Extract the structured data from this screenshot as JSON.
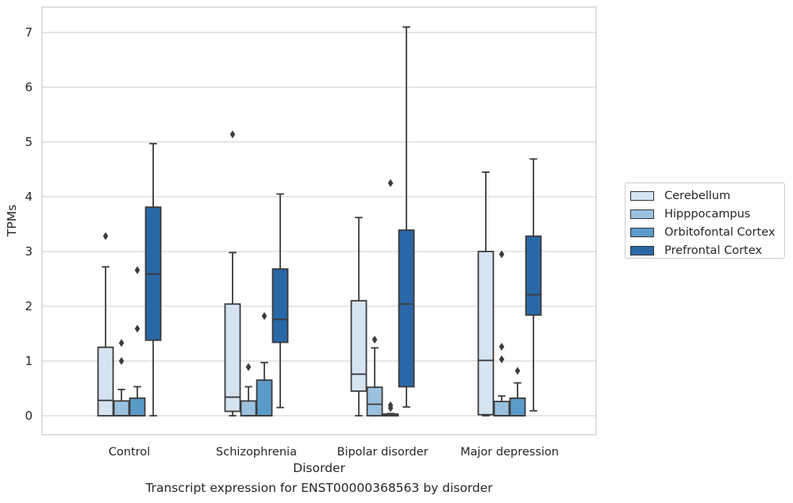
{
  "caption": "Transcript expression for ENST00000368563 by disorder",
  "chart_data": {
    "type": "box",
    "xlabel": "Disorder",
    "ylabel": "TPMs",
    "ylim": [
      -0.35,
      7.5
    ],
    "yticks": [
      0,
      1,
      2,
      3,
      4,
      5,
      6,
      7
    ],
    "grid": "horizontal",
    "legend_position": "right",
    "categories": [
      "Control",
      "Schizophrenia",
      "Bipolar disorder",
      "Major depression"
    ],
    "series": [
      {
        "name": "Cerebellum",
        "color": "#d6e4f2",
        "boxes": [
          {
            "whislo": 0.0,
            "q1": 0.0,
            "med": 0.28,
            "q3": 1.25,
            "whishi": 2.72,
            "fliers": [
              3.28
            ]
          },
          {
            "whislo": 0.0,
            "q1": 0.08,
            "med": 0.34,
            "q3": 2.04,
            "whishi": 2.98,
            "fliers": [
              5.14
            ]
          },
          {
            "whislo": 0.0,
            "q1": 0.45,
            "med": 0.76,
            "q3": 2.1,
            "whishi": 3.62,
            "fliers": []
          },
          {
            "whislo": 0.0,
            "q1": 0.02,
            "med": 1.01,
            "q3": 3.0,
            "whishi": 4.45,
            "fliers": []
          }
        ]
      },
      {
        "name": "Hipppocampus",
        "color": "#9ac1dd",
        "boxes": [
          {
            "whislo": 0.0,
            "q1": 0.0,
            "med": 0.0,
            "q3": 0.27,
            "whishi": 0.48,
            "fliers": [
              1.0,
              1.33
            ]
          },
          {
            "whislo": 0.0,
            "q1": 0.0,
            "med": 0.0,
            "q3": 0.27,
            "whishi": 0.53,
            "fliers": [
              0.89
            ]
          },
          {
            "whislo": 0.0,
            "q1": 0.0,
            "med": 0.21,
            "q3": 0.52,
            "whishi": 1.24,
            "fliers": [
              1.39
            ]
          },
          {
            "whislo": 0.0,
            "q1": 0.0,
            "med": 0.0,
            "q3": 0.26,
            "whishi": 0.36,
            "fliers": [
              1.03,
              1.26,
              2.95
            ]
          }
        ]
      },
      {
        "name": "Orbitofontal Cortex",
        "color": "#5b9bc9",
        "boxes": [
          {
            "whislo": 0.0,
            "q1": 0.0,
            "med": 0.0,
            "q3": 0.32,
            "whishi": 0.53,
            "fliers": [
              1.59,
              2.66
            ]
          },
          {
            "whislo": 0.0,
            "q1": 0.0,
            "med": 0.0,
            "q3": 0.65,
            "whishi": 0.97,
            "fliers": [
              1.82
            ]
          },
          {
            "whislo": 0.0,
            "q1": 0.0,
            "med": 0.0,
            "q3": 0.03,
            "whishi": 0.04,
            "fliers": [
              0.14,
              0.19,
              4.25
            ]
          },
          {
            "whislo": 0.0,
            "q1": 0.0,
            "med": 0.0,
            "q3": 0.32,
            "whishi": 0.6,
            "fliers": [
              0.82
            ]
          }
        ]
      },
      {
        "name": "Prefrontal Cortex",
        "color": "#2a67a6",
        "boxes": [
          {
            "whislo": 0.0,
            "q1": 1.38,
            "med": 2.59,
            "q3": 3.81,
            "whishi": 4.97,
            "fliers": []
          },
          {
            "whislo": 0.15,
            "q1": 1.34,
            "med": 1.76,
            "q3": 2.68,
            "whishi": 4.05,
            "fliers": []
          },
          {
            "whislo": 0.16,
            "q1": 0.53,
            "med": 2.04,
            "q3": 3.39,
            "whishi": 7.1,
            "fliers": []
          },
          {
            "whislo": 0.09,
            "q1": 1.84,
            "med": 2.21,
            "q3": 3.28,
            "whishi": 4.69,
            "fliers": []
          }
        ]
      }
    ]
  }
}
